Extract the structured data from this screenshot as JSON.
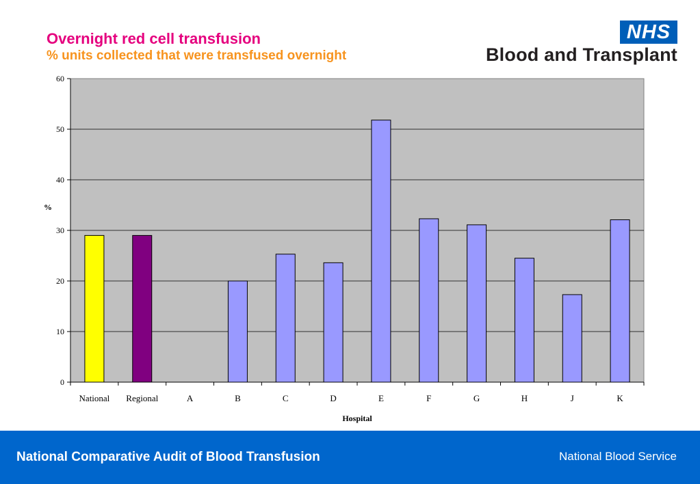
{
  "header": {
    "title": "Overnight red cell transfusion",
    "subtitle": "% units collected that were transfused overnight"
  },
  "logo": {
    "badge": "NHS",
    "name": "Blood and Transplant"
  },
  "footer": {
    "left": "National Comparative Audit of Blood Transfusion",
    "right": "National Blood Service"
  },
  "colors": {
    "title": "#e5007e",
    "subtitle": "#f7931e",
    "plot_bg": "#c0c0c0",
    "national": "#ffff00",
    "regional": "#800080",
    "hospital": "#9999ff",
    "footer": "#0066cc"
  },
  "chart_data": {
    "type": "bar",
    "categories": [
      "National",
      "Regional",
      "A",
      "B",
      "C",
      "D",
      "E",
      "F",
      "G",
      "H",
      "J",
      "K"
    ],
    "values": [
      29,
      29,
      0,
      20,
      25.3,
      23.6,
      51.8,
      32.3,
      31.1,
      24.5,
      17.3,
      32.1
    ],
    "bar_colors": [
      "#ffff00",
      "#800080",
      "#9999ff",
      "#9999ff",
      "#9999ff",
      "#9999ff",
      "#9999ff",
      "#9999ff",
      "#9999ff",
      "#9999ff",
      "#9999ff",
      "#9999ff"
    ],
    "xlabel": "Hospital",
    "ylabel": "%",
    "ylim": [
      0,
      60
    ],
    "yticks": [
      0,
      10,
      20,
      30,
      40,
      50,
      60
    ],
    "grid": true,
    "legend": "none"
  }
}
